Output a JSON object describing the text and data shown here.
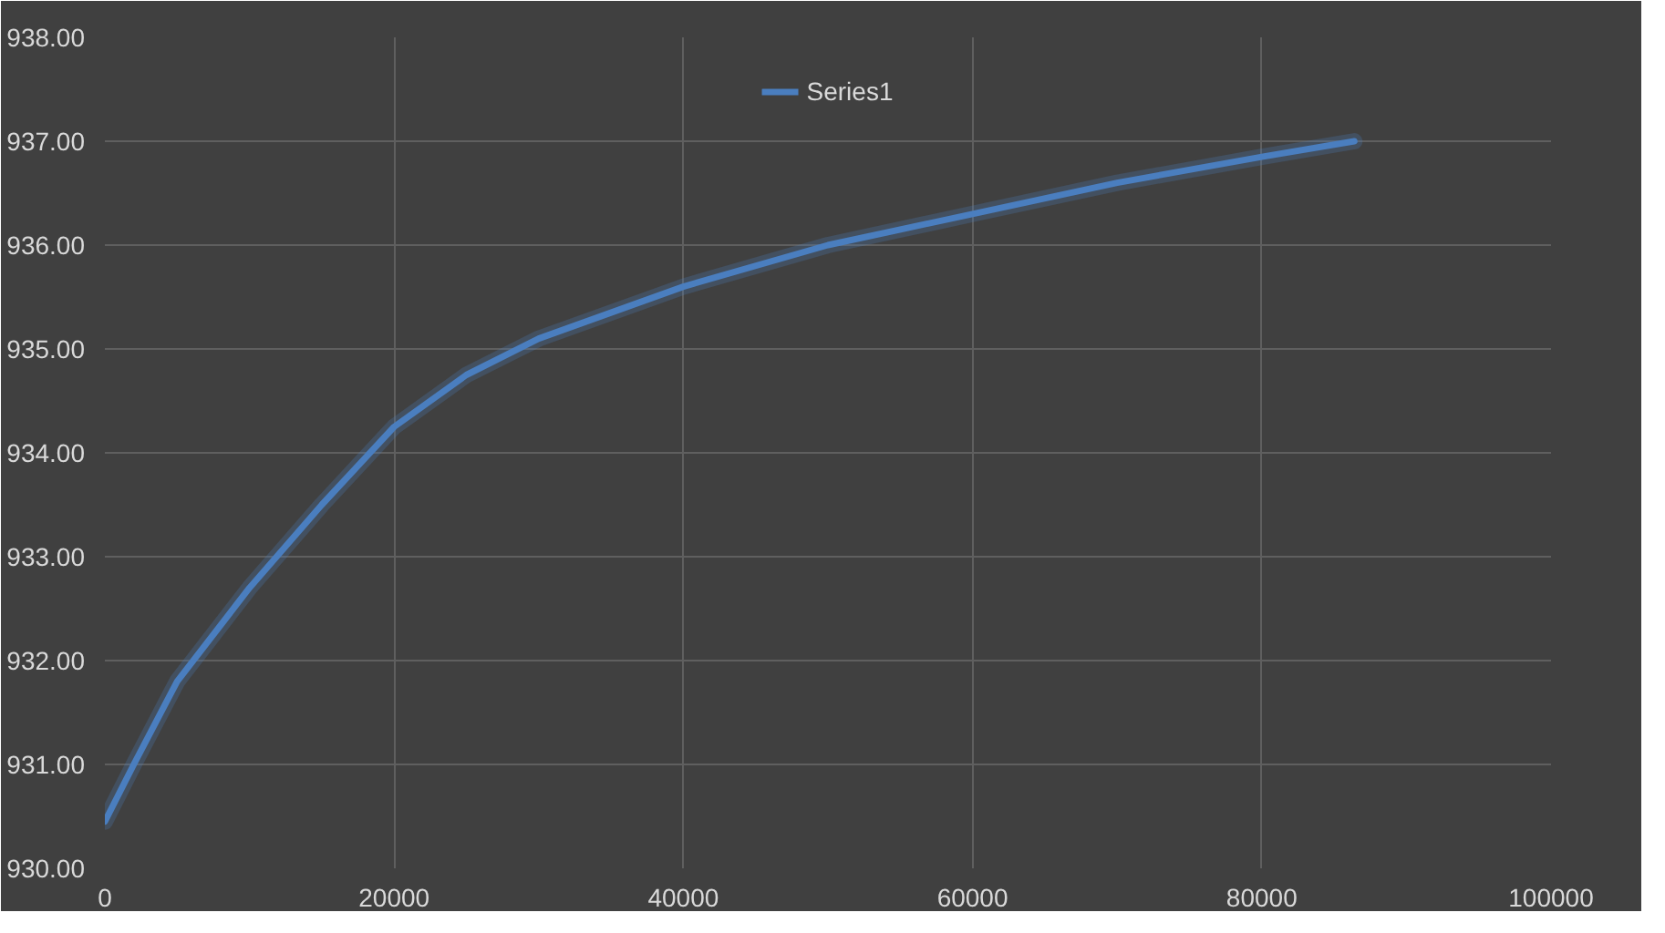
{
  "chart_data": {
    "type": "line",
    "x": [
      0,
      2000,
      5000,
      10000,
      15000,
      20000,
      25000,
      30000,
      40000,
      50000,
      60000,
      70000,
      80000,
      86400
    ],
    "series": [
      {
        "name": "Series1",
        "color": "#4a7ebf",
        "values": [
          930.45,
          931.0,
          931.8,
          932.7,
          933.5,
          934.25,
          934.75,
          935.1,
          935.6,
          936.0,
          936.3,
          936.6,
          936.85,
          937.0
        ]
      }
    ],
    "xlim": [
      0,
      100000
    ],
    "xticks": [
      0,
      20000,
      40000,
      60000,
      80000,
      100000
    ],
    "ylim": [
      930,
      938
    ],
    "yticks": [
      {
        "value": 930,
        "label": "930.00"
      },
      {
        "value": 931,
        "label": "931.00"
      },
      {
        "value": 932,
        "label": "932.00"
      },
      {
        "value": 933,
        "label": "933.00"
      },
      {
        "value": 934,
        "label": "934.00"
      },
      {
        "value": 935,
        "label": "935.00"
      },
      {
        "value": 936,
        "label": "936.00"
      },
      {
        "value": 937,
        "label": "937.00"
      },
      {
        "value": 938,
        "label": "938.00"
      }
    ],
    "grid": true,
    "legend": "top",
    "marker": "none",
    "line_style": "solid"
  }
}
